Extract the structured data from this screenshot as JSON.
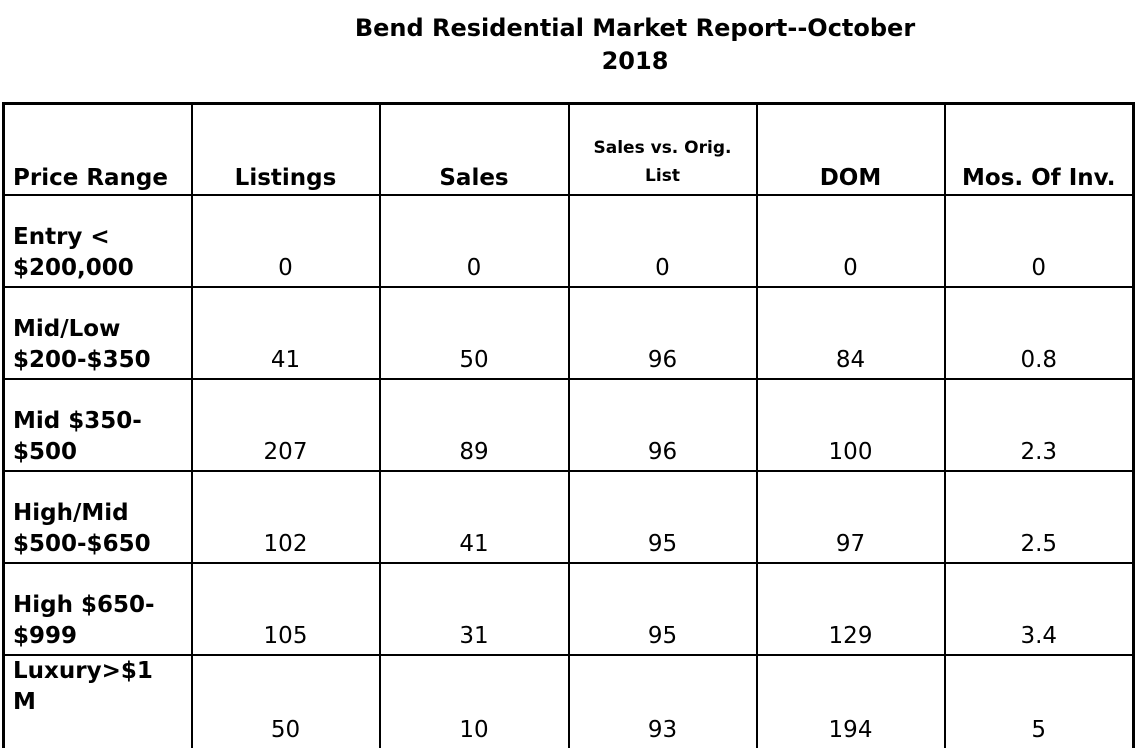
{
  "title": {
    "line1": "Bend Residential Market Report--October",
    "line2": "2018"
  },
  "columns": {
    "price_range": "Price Range",
    "listings": "Listings",
    "sales": "Sales",
    "sales_vs_orig_line1": "Sales vs. Orig.",
    "sales_vs_orig_line2": "List",
    "dom": "DOM",
    "mos_of_inv": "Mos. Of Inv."
  },
  "rows": [
    {
      "range_line1": "Entry <",
      "range_line2": "$200,000",
      "listings": "0",
      "sales": "0",
      "sales_vs_orig": "0",
      "dom": "0",
      "mos_of_inv": "0"
    },
    {
      "range_line1": "Mid/Low",
      "range_line2": "$200-$350",
      "listings": "41",
      "sales": "50",
      "sales_vs_orig": "96",
      "dom": "84",
      "mos_of_inv": "0.8"
    },
    {
      "range_line1": "Mid $350-",
      "range_line2": "$500",
      "listings": "207",
      "sales": "89",
      "sales_vs_orig": "96",
      "dom": "100",
      "mos_of_inv": "2.3"
    },
    {
      "range_line1": "High/Mid",
      "range_line2": "$500-$650",
      "listings": "102",
      "sales": "41",
      "sales_vs_orig": "95",
      "dom": "97",
      "mos_of_inv": "2.5"
    },
    {
      "range_line1": "High $650-",
      "range_line2": "$999",
      "listings": "105",
      "sales": "31",
      "sales_vs_orig": "95",
      "dom": "129",
      "mos_of_inv": "3.4"
    },
    {
      "range_line1": "Luxury>$1",
      "range_line2": "M",
      "listings": "50",
      "sales": "10",
      "sales_vs_orig": "93",
      "dom": "194",
      "mos_of_inv": "5"
    }
  ]
}
